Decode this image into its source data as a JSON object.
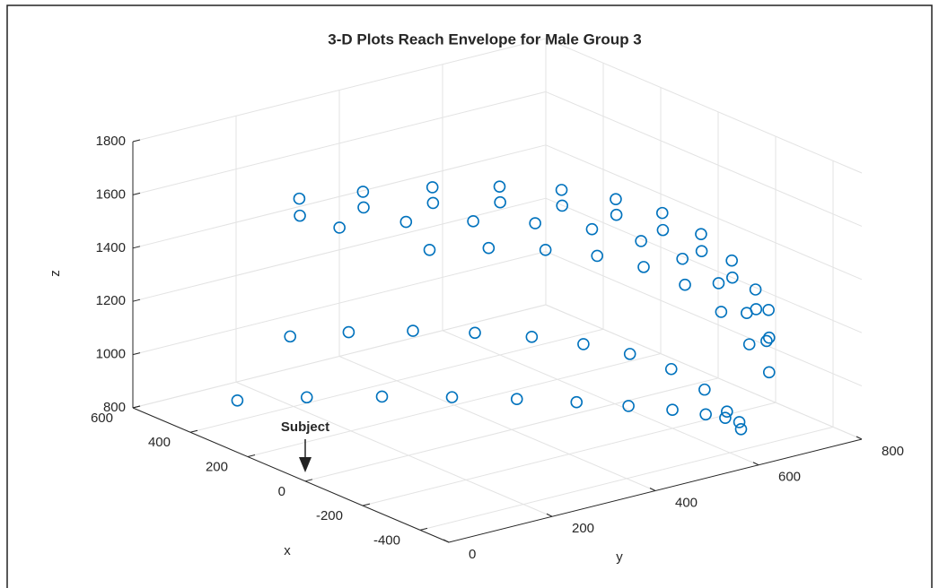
{
  "chart_data": {
    "type": "scatter3d",
    "title": "3-D Plots Reach Envelope for Male Group 3",
    "xlabel": "x",
    "ylabel": "y",
    "zlabel": "z",
    "annotation": "Subject",
    "xlim": [
      -500,
      600
    ],
    "ylim": [
      0,
      800
    ],
    "zlim": [
      800,
      1800
    ],
    "xticks": [
      -400,
      -200,
      0,
      200,
      400,
      600
    ],
    "yticks": [
      0,
      200,
      400,
      600,
      800
    ],
    "zticks": [
      800,
      1000,
      1200,
      1400,
      1600,
      1800
    ],
    "grid": true,
    "series": [
      {
        "color": "#0072bd",
        "x": [
          380,
          320,
          240,
          150,
          60,
          -30,
          -120,
          -210,
          -290,
          -360,
          -400
        ],
        "y": [
          200,
          290,
          380,
          460,
          530,
          585,
          625,
          650,
          665,
          672,
          675
        ],
        "z": [
          1590,
          1600,
          1610,
          1615,
          1610,
          1590,
          1560,
          1510,
          1440,
          1360,
          1300
        ]
      },
      {
        "color": "#0072bd",
        "x": [
          360,
          300,
          220,
          130,
          40,
          -50,
          -140,
          -230,
          -310,
          -380,
          -420
        ],
        "y": [
          190,
          280,
          370,
          450,
          520,
          575,
          615,
          640,
          655,
          662,
          665
        ],
        "z": [
          1540,
          1555,
          1565,
          1570,
          1565,
          1545,
          1510,
          1460,
          1390,
          1300,
          1210
        ]
      },
      {
        "color": "#0072bd",
        "x": [
          330,
          260,
          170,
          80,
          -10,
          -100,
          -190,
          -280,
          -360,
          -420
        ],
        "y": [
          250,
          340,
          420,
          490,
          550,
          595,
          625,
          645,
          655,
          660
        ],
        "z": [
          1480,
          1490,
          1495,
          1495,
          1485,
          1460,
          1420,
          1360,
          1280,
          1200
        ]
      },
      {
        "color": "#0072bd",
        "x": [
          250,
          170,
          80,
          -10,
          -100,
          -190,
          -280,
          -360,
          -420
        ],
        "y": [
          380,
          450,
          510,
          560,
          600,
          630,
          650,
          660,
          665
        ],
        "z": [
          1370,
          1380,
          1385,
          1380,
          1360,
          1320,
          1250,
          1160,
          1080
        ]
      },
      {
        "color": "#0072bd",
        "x": [
          340,
          280,
          200,
          110,
          20,
          -70,
          -160,
          -250,
          -330,
          -390,
          -430
        ],
        "y": [
          160,
          240,
          320,
          390,
          450,
          500,
          540,
          570,
          590,
          600,
          605
        ],
        "z": [
          1110,
          1115,
          1118,
          1118,
          1115,
          1105,
          1090,
          1060,
          1010,
          950,
          900
        ]
      },
      {
        "color": "#0072bd",
        "x": [
          380,
          300,
          200,
          100,
          0,
          -100,
          -200,
          -290,
          -370,
          -420,
          -460
        ],
        "y": [
          80,
          170,
          260,
          340,
          410,
          470,
          515,
          550,
          570,
          580,
          585
        ],
        "z": [
          890,
          895,
          900,
          905,
          910,
          915,
          925,
          935,
          945,
          950,
          950
        ]
      }
    ]
  }
}
